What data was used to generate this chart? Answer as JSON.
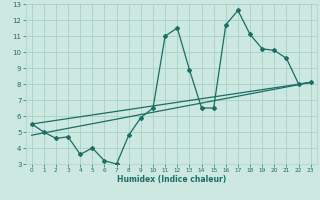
{
  "xlabel": "Humidex (Indice chaleur)",
  "bg_color": "#cce8e0",
  "grid_color": "#aad4ca",
  "line_color": "#1a6e64",
  "xlim": [
    -0.5,
    23.5
  ],
  "ylim": [
    3,
    13
  ],
  "xticks": [
    0,
    1,
    2,
    3,
    4,
    5,
    6,
    7,
    8,
    9,
    10,
    11,
    12,
    13,
    14,
    15,
    16,
    17,
    18,
    19,
    20,
    21,
    22,
    23
  ],
  "yticks": [
    3,
    4,
    5,
    6,
    7,
    8,
    9,
    10,
    11,
    12,
    13
  ],
  "line1_x": [
    0,
    1,
    2,
    3,
    4,
    5,
    6,
    7,
    8,
    9,
    10,
    11,
    12,
    13,
    14,
    15,
    16,
    17,
    18,
    19,
    20,
    21,
    22,
    23
  ],
  "line1_y": [
    5.5,
    5.0,
    4.6,
    4.7,
    3.6,
    4.0,
    3.2,
    3.0,
    4.8,
    5.9,
    6.5,
    11.0,
    11.5,
    8.9,
    6.5,
    6.5,
    11.7,
    12.6,
    11.1,
    10.2,
    10.1,
    9.6,
    8.0,
    8.1
  ],
  "line2_x": [
    0,
    23
  ],
  "line2_y": [
    5.5,
    8.1
  ],
  "line3_x": [
    0,
    23
  ],
  "line3_y": [
    4.8,
    8.1
  ],
  "xticklabels": [
    "0",
    "1",
    "2",
    "3",
    "4",
    "5",
    "6",
    "7",
    "8",
    "9",
    "10",
    "11",
    "12",
    "13",
    "14",
    "15",
    "16",
    "17",
    "18",
    "19",
    "20",
    "21",
    "22",
    "23"
  ]
}
